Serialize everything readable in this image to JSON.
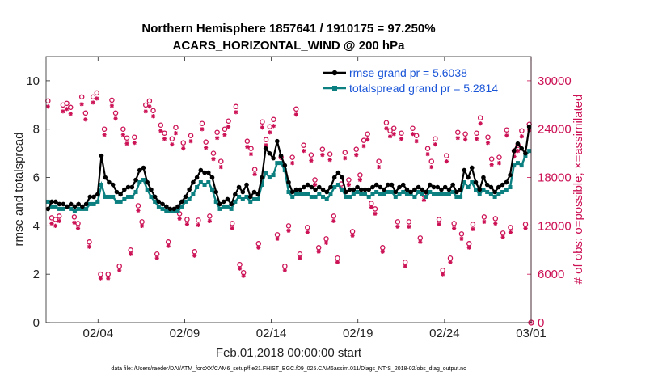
{
  "chart_data": {
    "type": "line",
    "title_line1": "Northern Hemisphere 1857641 / 1910175 = 97.250%",
    "title_line2": "ACARS_HORIZONTAL_WIND @ 200 hPa",
    "xlabel": "Feb.01,2018 00:00:00 start",
    "ylabel_left": "rmse and totalspread",
    "ylabel_right": "# of obs: o=possible; ×=assimilated",
    "x_range_days": [
      0,
      28
    ],
    "x_ticks": [
      {
        "day": 3,
        "label": "02/04"
      },
      {
        "day": 8,
        "label": "02/09"
      },
      {
        "day": 13,
        "label": "02/14"
      },
      {
        "day": 18,
        "label": "02/19"
      },
      {
        "day": 23,
        "label": "02/24"
      },
      {
        "day": 28,
        "label": "03/01"
      }
    ],
    "ylim_left": [
      0,
      11
    ],
    "y_ticks_left": [
      0,
      2,
      4,
      6,
      8,
      10
    ],
    "ylim_right": [
      0,
      33000
    ],
    "y_ticks_right": [
      0,
      6000,
      12000,
      18000,
      24000,
      30000
    ],
    "series": [
      {
        "name": "rmse",
        "legend": "rmse grand pr = 5.6038",
        "color": "#000000",
        "values": [
          4.7,
          5.0,
          5.0,
          4.9,
          4.9,
          4.8,
          4.9,
          4.8,
          4.9,
          4.8,
          4.9,
          5.2,
          5.2,
          5.3,
          6.9,
          6.0,
          5.8,
          5.7,
          5.4,
          5.3,
          5.5,
          5.6,
          5.6,
          5.9,
          6.3,
          6.4,
          5.8,
          5.5,
          5.2,
          5.0,
          4.9,
          4.8,
          4.7,
          4.7,
          4.8,
          5.0,
          5.2,
          5.5,
          5.8,
          6.0,
          6.3,
          6.2,
          6.2,
          6.0,
          5.4,
          4.9,
          5.0,
          5.1,
          4.9,
          5.3,
          5.6,
          5.4,
          5.7,
          5.2,
          5.4,
          5.3,
          6.0,
          7.2,
          7.0,
          6.8,
          7.5,
          6.9,
          6.5,
          5.8,
          5.4,
          5.5,
          5.5,
          5.6,
          5.7,
          5.6,
          5.5,
          5.6,
          5.5,
          5.4,
          5.6,
          6.0,
          6.2,
          6.0,
          5.4,
          5.5,
          5.5,
          5.6,
          5.5,
          5.5,
          5.5,
          5.6,
          5.7,
          5.6,
          5.5,
          5.7,
          5.7,
          5.4,
          5.6,
          5.7,
          5.5,
          5.4,
          5.5,
          5.6,
          5.5,
          5.4,
          5.7,
          5.6,
          5.6,
          5.5,
          5.6,
          5.5,
          5.7,
          5.4,
          5.5,
          6.3,
          6.0,
          6.4,
          5.8,
          5.5,
          6.0,
          5.7,
          5.6,
          5.4,
          5.6,
          5.7,
          5.8,
          6.1,
          7.1,
          7.4,
          7.2,
          7.0,
          8.1
        ]
      },
      {
        "name": "totalspread",
        "legend": "totalspread grand pr = 5.2814",
        "color": "#0c8080",
        "values": [
          5.0,
          4.8,
          4.8,
          4.7,
          4.7,
          4.8,
          4.7,
          4.6,
          4.7,
          4.7,
          4.7,
          4.9,
          4.9,
          5.0,
          5.7,
          5.2,
          5.2,
          5.2,
          5.0,
          5.0,
          5.1,
          5.2,
          5.2,
          5.4,
          5.8,
          5.9,
          5.5,
          5.2,
          5.0,
          4.8,
          4.7,
          4.6,
          4.6,
          4.6,
          4.6,
          4.8,
          5.0,
          5.1,
          5.3,
          5.6,
          5.8,
          5.7,
          5.8,
          5.5,
          5.0,
          4.7,
          4.8,
          4.8,
          4.7,
          5.0,
          5.2,
          5.1,
          5.2,
          5.0,
          5.1,
          5.1,
          5.7,
          6.2,
          6.0,
          6.1,
          6.6,
          6.6,
          6.3,
          5.4,
          5.2,
          5.3,
          5.3,
          5.3,
          5.3,
          5.2,
          5.2,
          5.3,
          5.2,
          5.1,
          5.3,
          5.6,
          5.7,
          5.5,
          5.2,
          5.2,
          5.3,
          5.4,
          5.3,
          5.3,
          5.2,
          5.3,
          5.4,
          5.3,
          5.3,
          5.4,
          5.4,
          5.2,
          5.3,
          5.4,
          5.3,
          5.3,
          5.2,
          5.4,
          5.3,
          5.2,
          5.4,
          5.3,
          5.3,
          5.3,
          5.3,
          5.3,
          5.4,
          5.2,
          5.2,
          5.8,
          5.6,
          5.8,
          5.5,
          5.3,
          5.5,
          5.4,
          5.3,
          5.2,
          5.3,
          5.4,
          5.5,
          5.6,
          6.5,
          6.6,
          6.5,
          6.9,
          7.1
        ]
      },
      {
        "name": "obs_possible",
        "color": "#cc1155",
        "values": [
          27500,
          13000,
          12800,
          13200,
          27000,
          27200,
          26700,
          13100,
          12300,
          28000,
          26000,
          10000,
          28000,
          28500,
          6000,
          24000,
          6000,
          27600,
          26000,
          7000,
          24000,
          22900,
          9000,
          23000,
          14500,
          12500,
          27000,
          27500,
          26300,
          8500,
          24500,
          23500,
          10000,
          22800,
          24200,
          13500,
          22300,
          12800,
          23200,
          8800,
          12700,
          24700,
          22400,
          13200,
          21000,
          23600,
          20000,
          24000,
          25000,
          12300,
          26800,
          7200,
          6200,
          22500,
          21600,
          19000,
          9800,
          24900,
          22700,
          24300,
          25200,
          10900,
          20500,
          7000,
          12000,
          20500,
          26500,
          8500,
          22000,
          11800,
          20800,
          17700,
          9300,
          21500,
          10400,
          20900,
          13200,
          8000,
          17200,
          21100,
          17700,
          11300,
          21500,
          18300,
          22600,
          23400,
          14800,
          14100,
          20000,
          9300,
          24800,
          23800,
          24100,
          12500,
          23500,
          7500,
          12500,
          24100,
          23200,
          10500,
          15800,
          21600,
          20000,
          22800,
          12800,
          6500,
          20700,
          8000,
          12300,
          23600,
          11000,
          23400,
          9800,
          12200,
          23500,
          25400,
          13100,
          23000,
          20300,
          12900,
          20500,
          11100,
          23900,
          11800,
          21300,
          22000,
          23800,
          12200,
          24600
        ]
      },
      {
        "name": "obs_assimilated",
        "color": "#cc1155",
        "values": [
          26800,
          12300,
          12000,
          12600,
          26200,
          26500,
          25900,
          12400,
          11700,
          27100,
          25200,
          9400,
          27300,
          27800,
          5500,
          23300,
          5500,
          26900,
          25300,
          6500,
          23300,
          22200,
          8500,
          22300,
          13900,
          12000,
          26200,
          26800,
          25600,
          8000,
          23800,
          22800,
          9500,
          22100,
          23500,
          12900,
          21600,
          12200,
          22500,
          8300,
          12100,
          24000,
          21700,
          12600,
          20300,
          22900,
          19300,
          23300,
          24300,
          11700,
          26100,
          6700,
          5800,
          21800,
          20900,
          18400,
          9300,
          24200,
          22000,
          23600,
          24400,
          10400,
          19800,
          6500,
          11400,
          19800,
          25800,
          8000,
          21300,
          11200,
          20100,
          17100,
          8800,
          20800,
          9900,
          20200,
          12600,
          7500,
          16600,
          20400,
          17100,
          10800,
          20800,
          17700,
          21900,
          22700,
          14300,
          13500,
          19300,
          8800,
          24100,
          23100,
          23400,
          11900,
          22800,
          7000,
          11900,
          23400,
          22500,
          10000,
          15200,
          20900,
          19300,
          22100,
          12200,
          6000,
          20000,
          7500,
          11700,
          22900,
          10400,
          22700,
          9300,
          11600,
          22800,
          24700,
          12500,
          22300,
          19600,
          12300,
          19800,
          10600,
          23200,
          11200,
          20600,
          21300,
          23100,
          11700,
          23900
        ]
      }
    ]
  },
  "footer_text": "data file: /Users/raeder/DAI/ATM_forcXX/CAM6_setup/f.e21.FHIST_BGC.f09_025.CAM6assim.011/Diags_NTrS_2018-02/obs_diag_output.nc"
}
